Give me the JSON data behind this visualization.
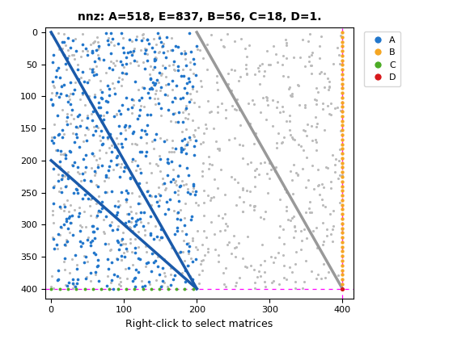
{
  "title": "nnz: A=518, E=837, B=56, C=18, D=1.",
  "xlabel": "Right-click to select matrices",
  "colors": {
    "A_dot": "#2277cc",
    "A_line": "#1a5aaa",
    "E_dot": "#bbbbbb",
    "E_line": "#999999",
    "B_dot": "#f5a623",
    "C_dot": "#4dac26",
    "D_dot": "#d7191c",
    "magenta": "#ff00ff"
  },
  "xlim": [
    -8,
    415
  ],
  "ylim": [
    415,
    -8
  ],
  "xticks": [
    0,
    100,
    200,
    300,
    400
  ],
  "yticks": [
    0,
    50,
    100,
    150,
    200,
    250,
    300,
    350,
    400
  ],
  "N": 400,
  "A_cols": 200,
  "A_rows": 400,
  "seed": 7
}
